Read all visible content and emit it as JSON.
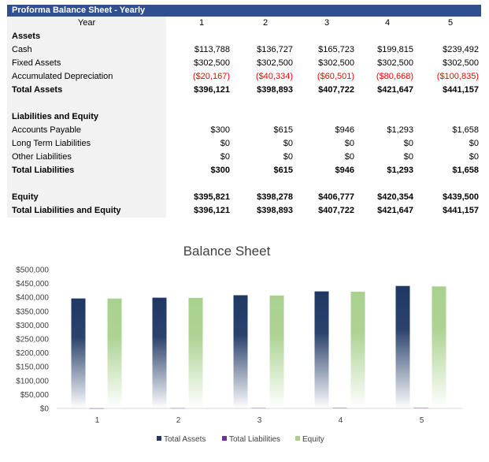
{
  "sheet": {
    "title": "Proforma Balance Sheet - Yearly",
    "header": {
      "label": "Year",
      "cols": [
        "1",
        "2",
        "3",
        "4",
        "5"
      ]
    },
    "rows": [
      {
        "label": "Assets",
        "bold": true,
        "values": []
      },
      {
        "label": "Cash",
        "values": [
          "$113,788",
          "$136,727",
          "$165,723",
          "$199,815",
          "$239,492"
        ]
      },
      {
        "label": "Fixed Assets",
        "values": [
          "$302,500",
          "$302,500",
          "$302,500",
          "$302,500",
          "$302,500"
        ]
      },
      {
        "label": "Accumulated Depreciation",
        "red": true,
        "values": [
          "($20,167)",
          "($40,334)",
          "($60,501)",
          "($80,668)",
          "($100,835)"
        ]
      },
      {
        "label": "Total Assets",
        "bold": true,
        "values": [
          "$396,121",
          "$398,893",
          "$407,722",
          "$421,647",
          "$441,157"
        ]
      },
      {
        "label": "",
        "values": []
      },
      {
        "label": "Liabilities and Equity",
        "bold": true,
        "values": []
      },
      {
        "label": "Accounts Payable",
        "values": [
          "$300",
          "$615",
          "$946",
          "$1,293",
          "$1,658"
        ]
      },
      {
        "label": "Long Term Liabilities",
        "values": [
          "$0",
          "$0",
          "$0",
          "$0",
          "$0"
        ]
      },
      {
        "label": "Other Liabilities",
        "values": [
          "$0",
          "$0",
          "$0",
          "$0",
          "$0"
        ]
      },
      {
        "label": "Total Liabilities",
        "bold": true,
        "values": [
          "$300",
          "$615",
          "$946",
          "$1,293",
          "$1,658"
        ]
      },
      {
        "label": "",
        "values": []
      },
      {
        "label": "Equity",
        "bold": true,
        "values": [
          "$395,821",
          "$398,278",
          "$406,777",
          "$420,354",
          "$439,500"
        ]
      },
      {
        "label": "Total Liabilities and Equity",
        "bold": true,
        "values": [
          "$396,121",
          "$398,893",
          "$407,722",
          "$421,647",
          "$441,157"
        ]
      }
    ]
  },
  "chart_data": {
    "type": "bar",
    "title": "Balance Sheet",
    "categories": [
      "1",
      "2",
      "3",
      "4",
      "5"
    ],
    "series": [
      {
        "name": "Total Assets",
        "color": "#1f3864",
        "values": [
          396121,
          398893,
          407722,
          421647,
          441157
        ]
      },
      {
        "name": "Total Liabilities",
        "color": "#7030a0",
        "values": [
          300,
          615,
          946,
          1293,
          1658
        ]
      },
      {
        "name": "Equity",
        "color": "#a9d18e",
        "values": [
          395821,
          398278,
          406777,
          420354,
          439500
        ]
      }
    ],
    "ylim": [
      0,
      500000
    ],
    "yticks": [
      {
        "value": 0,
        "label": "$0"
      },
      {
        "value": 50000,
        "label": "$50,000"
      },
      {
        "value": 100000,
        "label": "$100,000"
      },
      {
        "value": 150000,
        "label": "$150,000"
      },
      {
        "value": 200000,
        "label": "$200,000"
      },
      {
        "value": 250000,
        "label": "$250,000"
      },
      {
        "value": 300000,
        "label": "$300,000"
      },
      {
        "value": 350000,
        "label": "$350,000"
      },
      {
        "value": 400000,
        "label": "$400,000"
      },
      {
        "value": 450000,
        "label": "$450,000"
      },
      {
        "value": 500000,
        "label": "$500,000"
      }
    ],
    "legend": "bottom",
    "grid": false
  }
}
